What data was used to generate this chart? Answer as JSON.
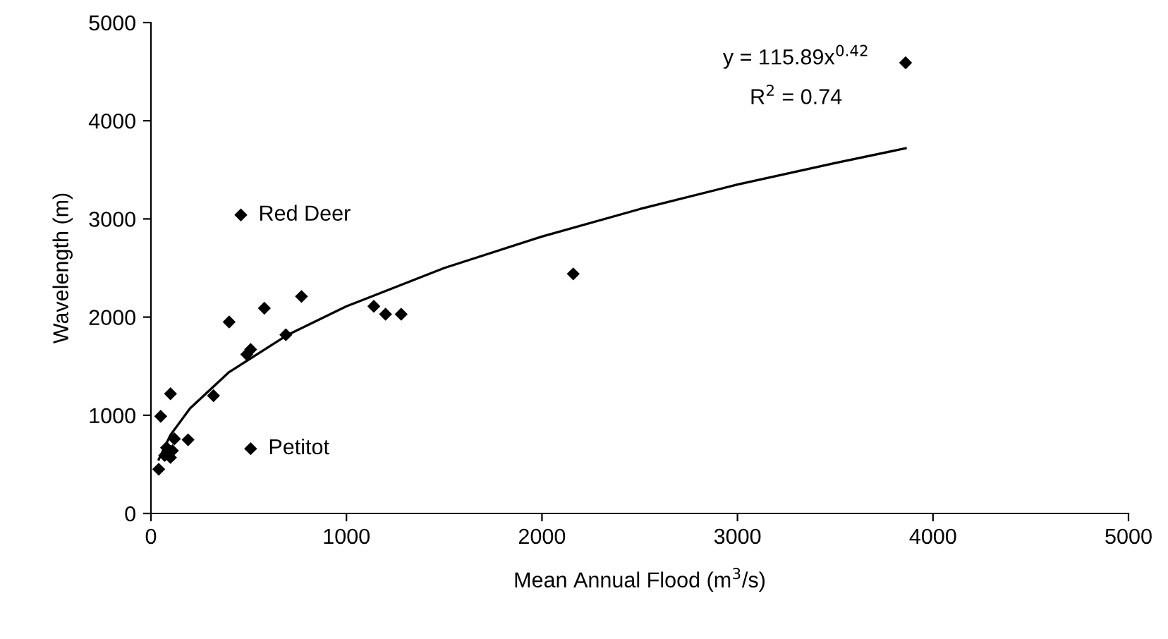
{
  "chart_data": {
    "type": "scatter",
    "xlabel": "Mean Annual Flood (m$^{3}$/s)",
    "ylabel": "Wavelength (m)",
    "xlim": [
      0,
      5000
    ],
    "xticks": [
      0,
      1000,
      2000,
      3000,
      4000,
      5000
    ],
    "ylim": [
      0,
      5000
    ],
    "yticks": [
      0,
      1000,
      2000,
      3000,
      4000,
      5000
    ],
    "grid": false,
    "series": [
      {
        "color": "#000000",
        "marker": "diamond",
        "x": [
          460,
          770,
          580,
          400,
          690,
          510,
          490,
          1140,
          1200,
          1280,
          320,
          100,
          50,
          190,
          120,
          110,
          70,
          100,
          40,
          80,
          510,
          2160,
          3860
        ],
        "values": [
          3040,
          2210,
          2090,
          1950,
          1820,
          1670,
          1620,
          2110,
          2030,
          2030,
          1200,
          1220,
          990,
          750,
          760,
          640,
          590,
          570,
          450,
          670,
          660,
          2440,
          4590
        ]
      },
      {
        "type": "line",
        "color": "#000000",
        "marker": "none",
        "x": [
          40,
          100,
          200,
          400,
          700,
          1000,
          1500,
          2000,
          2500,
          3000,
          3500,
          3860
        ],
        "values": [
          550,
          800,
          1070,
          1440,
          1820,
          2110,
          2500,
          2820,
          3100,
          3350,
          3570,
          3720
        ]
      }
    ],
    "annotations": [
      {
        "text": "Red Deer",
        "x": 460,
        "y": 3040
      },
      {
        "text": "Petitot",
        "x": 510,
        "y": 660
      },
      "y = 115.89x$^{0.42}$",
      "R$^{2}$ = 0.74"
    ]
  }
}
